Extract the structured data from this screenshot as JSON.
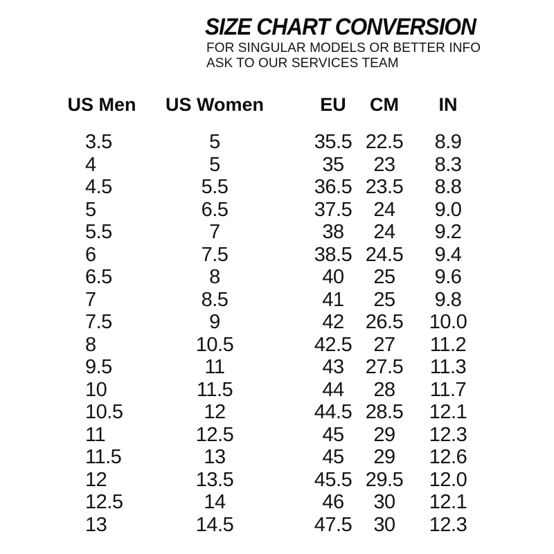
{
  "header": {
    "title": "SIZE CHART CONVERSION",
    "subtitle_line1": "FOR SINGULAR MODELS OR BETTER INFO",
    "subtitle_line2": "ASK TO OUR SERVICES TEAM"
  },
  "colors": {
    "text": "#101010",
    "background": "#ffffff"
  },
  "chart_data": {
    "type": "table",
    "title": "SIZE CHART CONVERSION",
    "columns": [
      "US Men",
      "US Women",
      "EU",
      "CM",
      "IN"
    ],
    "rows": [
      [
        "3.5",
        "5",
        "35.5",
        "22.5",
        "8.9"
      ],
      [
        "4",
        "5",
        "35",
        "23",
        "8.3"
      ],
      [
        "4.5",
        "5.5",
        "36.5",
        "23.5",
        "8.8"
      ],
      [
        "5",
        "6.5",
        "37.5",
        "24",
        "9.0"
      ],
      [
        "5.5",
        "7",
        "38",
        "24",
        "9.2"
      ],
      [
        "6",
        "7.5",
        "38.5",
        "24.5",
        "9.4"
      ],
      [
        "6.5",
        "8",
        "40",
        "25",
        "9.6"
      ],
      [
        "7",
        "8.5",
        "41",
        "25",
        "9.8"
      ],
      [
        "7.5",
        "9",
        "42",
        "26.5",
        "10.0"
      ],
      [
        "8",
        "10.5",
        "42.5",
        "27",
        "11.2"
      ],
      [
        "9.5",
        "11",
        "43",
        "27.5",
        "11.3"
      ],
      [
        "10",
        "11.5",
        "44",
        "28",
        "11.7"
      ],
      [
        "10.5",
        "12",
        "44.5",
        "28.5",
        "12.1"
      ],
      [
        "11",
        "12.5",
        "45",
        "29",
        "12.3"
      ],
      [
        "11.5",
        "13",
        "45",
        "29",
        "12.6"
      ],
      [
        "12",
        "13.5",
        "45.5",
        "29.5",
        "12.0"
      ],
      [
        "12.5",
        "14",
        "46",
        "30",
        "12.1"
      ],
      [
        "13",
        "14.5",
        "47.5",
        "30",
        "12.3"
      ]
    ]
  }
}
